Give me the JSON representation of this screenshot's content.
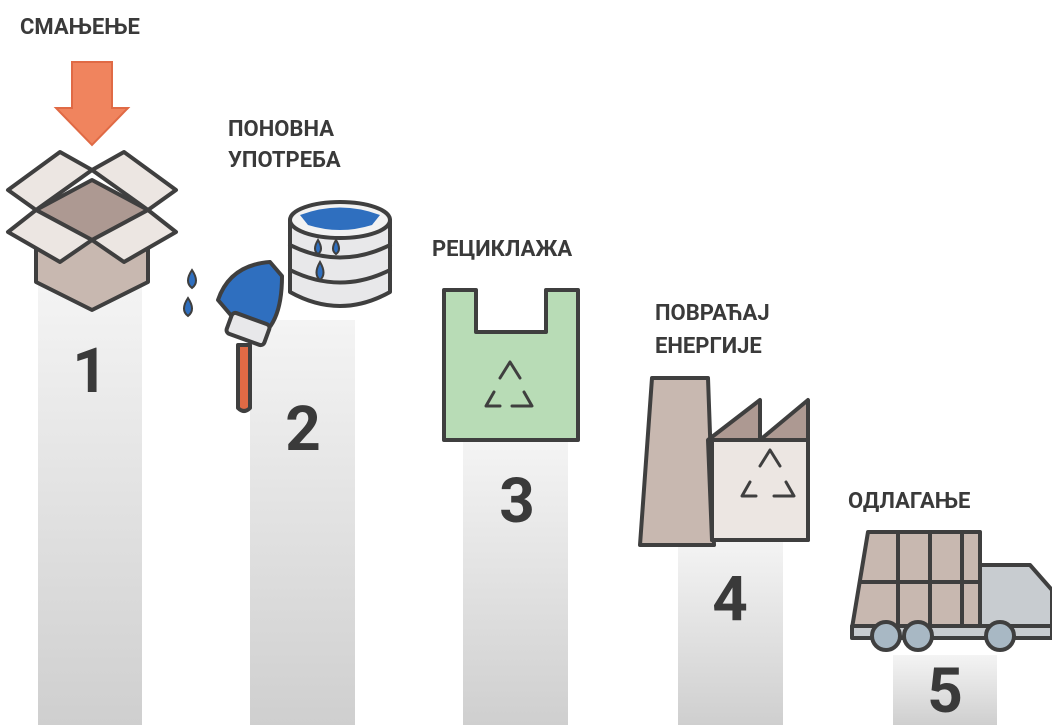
{
  "steps": [
    {
      "label": [
        "СМАЊЕЊЕ"
      ],
      "number": 1
    },
    {
      "label": [
        "ПОНОВНА",
        "УПОТРЕБА"
      ],
      "number": 2
    },
    {
      "label": [
        "РЕЦИКЛАЖА"
      ],
      "number": 3
    },
    {
      "label": [
        "ПОВРАЋАЈ",
        "ЕНЕРГИЈЕ"
      ],
      "number": 4
    },
    {
      "label": [
        "ОДЛАГАЊЕ"
      ],
      "number": 5
    }
  ]
}
